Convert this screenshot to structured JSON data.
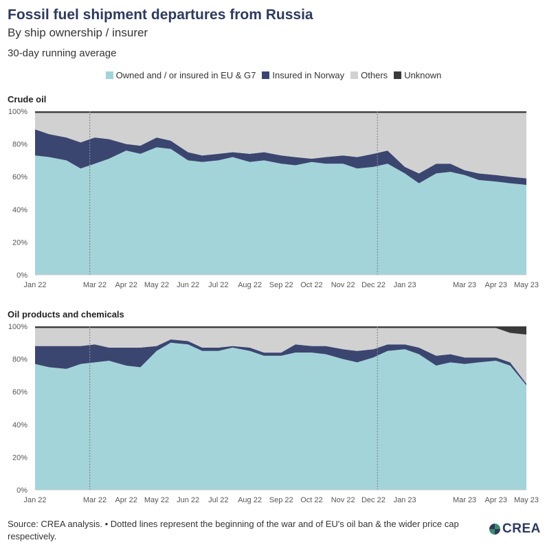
{
  "header": {
    "title": "Fossil fuel shipment departures from Russia",
    "subtitle": "By ship ownership / insurer",
    "note": "30-day running average"
  },
  "legend": [
    {
      "label": "Owned and / or insured in EU & G7",
      "color": "#a3d4d9"
    },
    {
      "label": "Insured in Norway",
      "color": "#3b4670"
    },
    {
      "label": "Others",
      "color": "#d1d1d1"
    },
    {
      "label": "Unknown",
      "color": "#3a3a3a"
    }
  ],
  "chart_data": [
    {
      "type": "area",
      "title": "Crude oil",
      "stacked": true,
      "ylim": [
        0,
        100
      ],
      "y_ticks": [
        "0%",
        "20%",
        "40%",
        "60%",
        "80%",
        "100%"
      ],
      "x_ticks": [
        "Jan 22",
        "Mar 22",
        "Apr 22",
        "May 22",
        "Jun 22",
        "Jul 22",
        "Aug 22",
        "Sep 22",
        "Oct 22",
        "Nov 22",
        "Dec 22",
        "Jan 23",
        "Mar 23",
        "Apr 23",
        "May 23"
      ],
      "x_tick_dates": [
        "2022-01-01",
        "2022-03-01",
        "2022-04-01",
        "2022-05-01",
        "2022-06-01",
        "2022-07-01",
        "2022-08-01",
        "2022-09-01",
        "2022-10-01",
        "2022-11-01",
        "2022-12-01",
        "2023-01-01",
        "2023-03-01",
        "2023-04-01",
        "2023-05-01"
      ],
      "x_range": [
        "2022-01-01",
        "2023-05-01"
      ],
      "vlines": [
        "2022-02-24",
        "2022-12-05"
      ],
      "x": [
        "2022-01-01",
        "2022-01-15",
        "2022-02-01",
        "2022-02-15",
        "2022-03-01",
        "2022-03-15",
        "2022-04-01",
        "2022-04-15",
        "2022-05-01",
        "2022-05-15",
        "2022-06-01",
        "2022-06-15",
        "2022-07-01",
        "2022-07-15",
        "2022-08-01",
        "2022-08-15",
        "2022-09-01",
        "2022-09-15",
        "2022-10-01",
        "2022-10-15",
        "2022-11-01",
        "2022-11-15",
        "2022-12-01",
        "2022-12-15",
        "2023-01-01",
        "2023-01-15",
        "2023-02-01",
        "2023-02-15",
        "2023-03-01",
        "2023-03-15",
        "2023-04-01",
        "2023-04-15",
        "2023-05-01"
      ],
      "series": [
        {
          "name": "Owned and / or insured in EU & G7",
          "color": "#a3d4d9",
          "values": [
            73,
            72,
            70,
            65,
            68,
            71,
            76,
            74,
            78,
            77,
            70,
            69,
            70,
            72,
            69,
            70,
            68,
            67,
            69,
            68,
            68,
            65,
            66,
            68,
            62,
            56,
            62,
            63,
            61,
            58,
            57,
            56,
            55
          ]
        },
        {
          "name": "Insured in Norway",
          "color": "#3b4670",
          "values": [
            16,
            14,
            14,
            16,
            16,
            12,
            4,
            5,
            6,
            5,
            5,
            4,
            4,
            3,
            5,
            5,
            5,
            5,
            2,
            4,
            5,
            7,
            8,
            8,
            4,
            6,
            6,
            5,
            3,
            4,
            4,
            4,
            4
          ]
        },
        {
          "name": "Others",
          "color": "#d1d1d1",
          "values": [
            10,
            13,
            15,
            18,
            15,
            16,
            19,
            20,
            15,
            17,
            24,
            26,
            25,
            24,
            25,
            24,
            26,
            27,
            28,
            27,
            26,
            27,
            25,
            23,
            33,
            37,
            31,
            31,
            35,
            37,
            38,
            39,
            40
          ]
        },
        {
          "name": "Unknown",
          "color": "#3a3a3a",
          "values": [
            1,
            1,
            1,
            1,
            1,
            1,
            1,
            1,
            1,
            1,
            1,
            1,
            1,
            1,
            1,
            1,
            1,
            1,
            1,
            1,
            1,
            1,
            1,
            1,
            1,
            1,
            1,
            1,
            1,
            1,
            1,
            1,
            1
          ]
        }
      ]
    },
    {
      "type": "area",
      "title": "Oil products and chemicals",
      "stacked": true,
      "ylim": [
        0,
        100
      ],
      "y_ticks": [
        "0%",
        "20%",
        "40%",
        "60%",
        "80%",
        "100%"
      ],
      "x_ticks": [
        "Jan 22",
        "Mar 22",
        "Apr 22",
        "May 22",
        "Jun 22",
        "Jul 22",
        "Aug 22",
        "Sep 22",
        "Oct 22",
        "Nov 22",
        "Dec 22",
        "Jan 23",
        "Mar 23",
        "Apr 23",
        "May 23"
      ],
      "x_tick_dates": [
        "2022-01-01",
        "2022-03-01",
        "2022-04-01",
        "2022-05-01",
        "2022-06-01",
        "2022-07-01",
        "2022-08-01",
        "2022-09-01",
        "2022-10-01",
        "2022-11-01",
        "2022-12-01",
        "2023-01-01",
        "2023-03-01",
        "2023-04-01",
        "2023-05-01"
      ],
      "x_range": [
        "2022-01-01",
        "2023-05-01"
      ],
      "vlines": [
        "2022-02-24",
        "2022-12-05"
      ],
      "x": [
        "2022-01-01",
        "2022-01-15",
        "2022-02-01",
        "2022-02-15",
        "2022-03-01",
        "2022-03-15",
        "2022-04-01",
        "2022-04-15",
        "2022-05-01",
        "2022-05-15",
        "2022-06-01",
        "2022-06-15",
        "2022-07-01",
        "2022-07-15",
        "2022-08-01",
        "2022-08-15",
        "2022-09-01",
        "2022-09-15",
        "2022-10-01",
        "2022-10-15",
        "2022-11-01",
        "2022-11-15",
        "2022-12-01",
        "2022-12-15",
        "2023-01-01",
        "2023-01-15",
        "2023-02-01",
        "2023-02-15",
        "2023-03-01",
        "2023-03-15",
        "2023-04-01",
        "2023-04-15",
        "2023-05-01"
      ],
      "series": [
        {
          "name": "Owned and / or insured in EU & G7",
          "color": "#a3d4d9",
          "values": [
            77,
            75,
            74,
            77,
            78,
            79,
            76,
            75,
            85,
            90,
            89,
            85,
            85,
            87,
            85,
            82,
            82,
            84,
            84,
            83,
            80,
            78,
            81,
            85,
            86,
            83,
            76,
            78,
            77,
            78,
            79,
            76,
            64
          ]
        },
        {
          "name": "Insured in Norway",
          "color": "#3b4670",
          "values": [
            11,
            13,
            14,
            11,
            11,
            8,
            11,
            12,
            3,
            2,
            2,
            2,
            2,
            1,
            2,
            2,
            2,
            5,
            4,
            5,
            6,
            7,
            5,
            4,
            3,
            4,
            6,
            5,
            4,
            3,
            2,
            2,
            1
          ]
        },
        {
          "name": "Others",
          "color": "#d1d1d1",
          "values": [
            11,
            11,
            11,
            11,
            10,
            12,
            12,
            12,
            11,
            7,
            8,
            12,
            12,
            11,
            12,
            15,
            15,
            10,
            11,
            11,
            13,
            14,
            13,
            10,
            10,
            12,
            17,
            16,
            18,
            18,
            18,
            18,
            30
          ]
        },
        {
          "name": "Unknown",
          "color": "#3a3a3a",
          "values": [
            1,
            1,
            1,
            1,
            1,
            1,
            1,
            1,
            1,
            1,
            1,
            1,
            1,
            1,
            1,
            1,
            1,
            1,
            1,
            1,
            1,
            1,
            1,
            1,
            1,
            1,
            1,
            1,
            1,
            1,
            1,
            4,
            5
          ]
        }
      ]
    }
  ],
  "footer": {
    "source": "Source: CREA analysis. • Dotted lines represent the beginning of the war and of EU's oil ban & the wider price cap respectively.",
    "logo_text": "CREA"
  }
}
